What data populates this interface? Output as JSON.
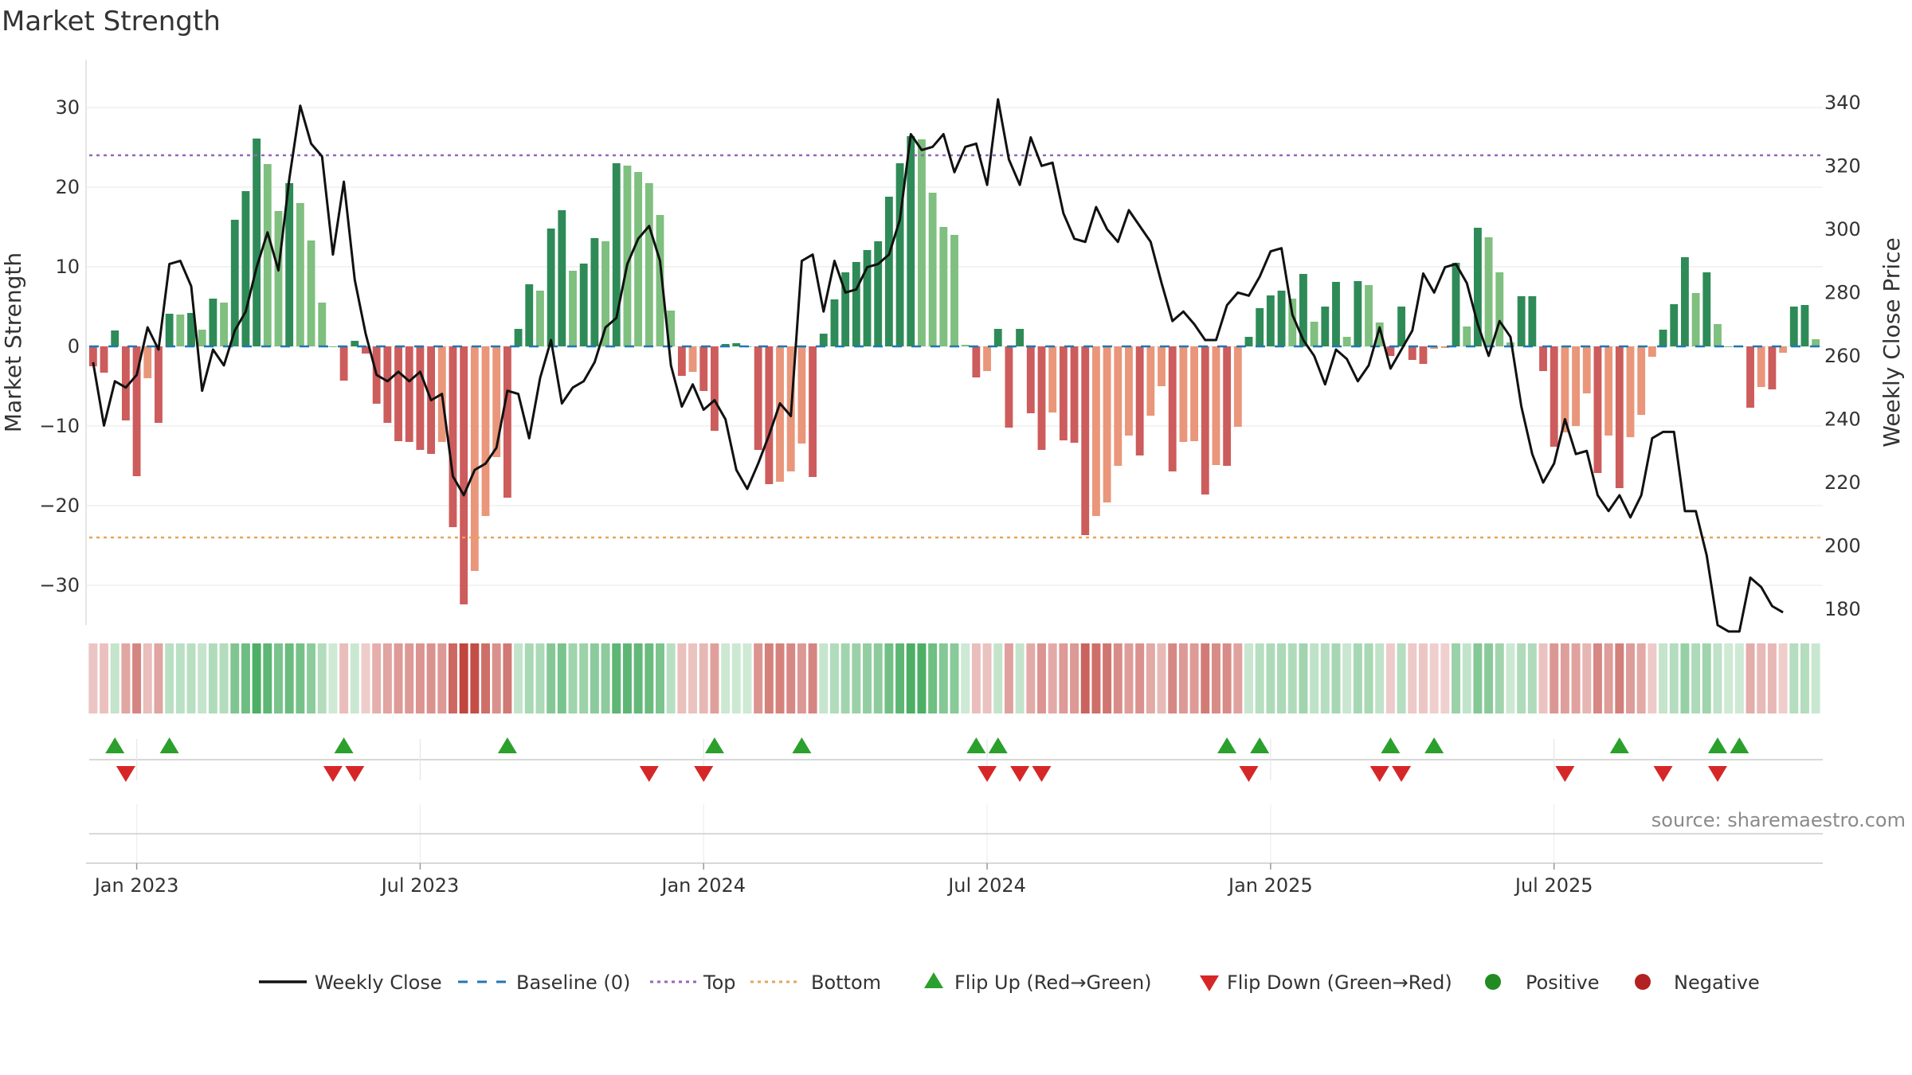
{
  "chart_data": {
    "type": "bar",
    "title": "Market Strength",
    "ylabel_left": "Market Strength",
    "ylabel_right": "Weekly Close Price",
    "ylim_left": [
      -35,
      35
    ],
    "ylim_right": [
      175,
      351
    ],
    "yticks_left": [
      -30,
      -20,
      -10,
      0,
      10,
      20,
      30
    ],
    "ytick_labels_left": [
      "−30",
      "−20",
      "−10",
      "0",
      "10",
      "20",
      "30"
    ],
    "yticks_right": [
      180,
      200,
      220,
      240,
      260,
      280,
      300,
      320,
      340
    ],
    "ytick_labels_right": [
      "180",
      "200",
      "220",
      "240",
      "260",
      "280",
      "300",
      "320",
      "340"
    ],
    "x_start_week": -4,
    "x_ticks": [
      {
        "week": 0,
        "label": "Jan 2023"
      },
      {
        "week": 26,
        "label": "Jul 2023"
      },
      {
        "week": 52,
        "label": "Jan 2024"
      },
      {
        "week": 78,
        "label": "Jul 2024"
      },
      {
        "week": 104,
        "label": "Jan 2025"
      },
      {
        "week": 130,
        "label": "Jul 2025"
      }
    ],
    "reference_lines": {
      "baseline": 0,
      "top": 24,
      "bottom": -24
    },
    "strength_values": [
      -2.5,
      -3.3,
      2,
      -9.3,
      -16.3,
      -4,
      -9.6,
      4.1,
      4,
      4.2,
      2.1,
      6,
      5.5,
      15.9,
      19.5,
      26.1,
      22.9,
      17,
      20.5,
      18,
      13.3,
      5.5,
      0,
      -4.3,
      0.7,
      -0.9,
      -7.2,
      -9.6,
      -11.9,
      -12,
      -13,
      -13.5,
      -12,
      -22.7,
      -32.4,
      -28.2,
      -21.3,
      -13.9,
      -19,
      2.2,
      7.8,
      7,
      14.8,
      17.1,
      9.5,
      10.4,
      13.6,
      13.2,
      23,
      22.7,
      21.9,
      20.5,
      16.5,
      4.5,
      -3.7,
      -3.2,
      -5.6,
      -10.6,
      0.3,
      0.4,
      0,
      -13,
      -17.3,
      -17,
      -15.7,
      -12.2,
      -16.4,
      1.6,
      5.9,
      9.3,
      10.6,
      12.1,
      13.2,
      18.8,
      23,
      26.4,
      26,
      19.3,
      15,
      14,
      0.2,
      -3.9,
      -3.1,
      2.2,
      -10.2,
      2.2,
      -8.4,
      -13,
      -8.3,
      -11.8,
      -12.1,
      -23.7,
      -21.3,
      -19.6,
      -15,
      -11.2,
      -13.7,
      -8.7,
      -5,
      -15.7,
      -12,
      -11.9,
      -18.6,
      -14.9,
      -15,
      -10.1,
      1.2,
      4.8,
      6.4,
      7,
      6,
      9.1,
      3.1,
      5,
      8.1,
      1.2,
      8.2,
      7.7,
      3,
      -1.2,
      5,
      -1.7,
      -2.2,
      -0.3,
      -0.2,
      10.5,
      2.5,
      14.9,
      13.7,
      9.3,
      0.5,
      6.3,
      6.3,
      -3.1,
      -12.6,
      -10.8,
      -10,
      -5.9,
      -15.9,
      -11.2,
      -17.8,
      -11.4,
      -8.6,
      -1.3,
      2.1,
      5.3,
      11.2,
      6.7,
      9.3,
      2.8,
      0,
      0,
      -7.7,
      -5.1,
      -5.4,
      -0.8,
      5,
      5.2,
      0.9
    ],
    "weekly_close": [
      258,
      238,
      252,
      250,
      254,
      269,
      262,
      289,
      290,
      282,
      249,
      262,
      257,
      268,
      274,
      288,
      299,
      287,
      316,
      339,
      327,
      323,
      292,
      315,
      284,
      267,
      254,
      252,
      255,
      252,
      255,
      246,
      248,
      222,
      216,
      224,
      226,
      231,
      249,
      248,
      234,
      253,
      265,
      245,
      250,
      252,
      258,
      269,
      272,
      289,
      297,
      301,
      290,
      257,
      244,
      251,
      243,
      246,
      240,
      224,
      218,
      226,
      235,
      245,
      241,
      290,
      292,
      274,
      290,
      280,
      281,
      288,
      289,
      292,
      303,
      330,
      325,
      326,
      330,
      318,
      326,
      327,
      314,
      341,
      322,
      314,
      329,
      320,
      321,
      305,
      297,
      296,
      307,
      300,
      296,
      306,
      301,
      296,
      283,
      271,
      274,
      270,
      265,
      265,
      276,
      280,
      279,
      285,
      293,
      294,
      273,
      265,
      260,
      251,
      262,
      259,
      252,
      257,
      269,
      256,
      262,
      268,
      286,
      280,
      288,
      289,
      283,
      270,
      260,
      271,
      266,
      244,
      229,
      220,
      226,
      240,
      229,
      230,
      216,
      211,
      216,
      209,
      216,
      234,
      236,
      236,
      211,
      211,
      197,
      175,
      173,
      173,
      190,
      187,
      181,
      179
    ],
    "flip_up_weeks": [
      -2,
      3,
      19,
      34,
      53,
      61,
      77,
      79,
      100,
      103,
      115,
      119,
      136,
      145,
      147
    ],
    "flip_down_weeks": [
      -1,
      18,
      20,
      47,
      52,
      78,
      81,
      83,
      102,
      114,
      116,
      131,
      140,
      145
    ],
    "source": "source: sharemaestro.com",
    "legend": [
      {
        "label": "Weekly Close",
        "symbol": "solid-line",
        "color": "#111111"
      },
      {
        "label": "Baseline (0)",
        "symbol": "dash-line",
        "color": "#1f77b4"
      },
      {
        "label": "Top",
        "symbol": "dot-line",
        "color": "#9467bd"
      },
      {
        "label": "Bottom",
        "symbol": "dot-line",
        "color": "#e8a35a"
      },
      {
        "label": "Flip Up (Red→Green)",
        "symbol": "triangle-up",
        "color": "#2ca02c"
      },
      {
        "label": "Flip Down (Green→Red)",
        "symbol": "triangle-down",
        "color": "#d62728"
      },
      {
        "label": "Positive",
        "symbol": "circle",
        "color": "#228b22"
      },
      {
        "label": "Negative",
        "symbol": "circle",
        "color": "#b22222"
      }
    ],
    "colors": {
      "positive_strong": "#2e8b57",
      "positive_weak": "#7fbf7f",
      "negative_strong": "#cd5c5c",
      "negative_weak": "#e9967a",
      "close_line": "#111111",
      "baseline": "#1f77b4",
      "top": "#9467bd",
      "bottom": "#e8a35a",
      "flip_up": "#2ca02c",
      "flip_down": "#d62728"
    }
  }
}
